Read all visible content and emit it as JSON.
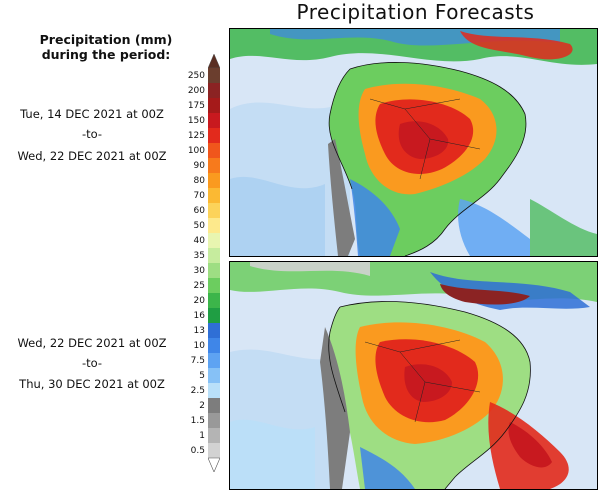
{
  "title": "Precipitation Forecasts",
  "legend": {
    "heading_line1": "Precipitation (mm)",
    "heading_line2": "during the period:",
    "levels": [
      {
        "label": "250",
        "color": "#6b3e2e"
      },
      {
        "label": "200",
        "color": "#8b2323"
      },
      {
        "label": "175",
        "color": "#a51a1a"
      },
      {
        "label": "150",
        "color": "#c8191f"
      },
      {
        "label": "125",
        "color": "#e22a1c"
      },
      {
        "label": "100",
        "color": "#f0561c"
      },
      {
        "label": "90",
        "color": "#f77a1c"
      },
      {
        "label": "80",
        "color": "#fa9a1f"
      },
      {
        "label": "70",
        "color": "#fbb933"
      },
      {
        "label": "60",
        "color": "#fcd35a"
      },
      {
        "label": "50",
        "color": "#fde98c"
      },
      {
        "label": "40",
        "color": "#e8f5b0"
      },
      {
        "label": "35",
        "color": "#c6ec9e"
      },
      {
        "label": "30",
        "color": "#9ede83"
      },
      {
        "label": "25",
        "color": "#6ccd5f"
      },
      {
        "label": "20",
        "color": "#3cb54a"
      },
      {
        "label": "16",
        "color": "#1f9e43"
      },
      {
        "label": "13",
        "color": "#2f6fd6"
      },
      {
        "label": "10",
        "color": "#3f86e8"
      },
      {
        "label": "7.5",
        "color": "#5ea3f2"
      },
      {
        "label": "5",
        "color": "#86c1f6"
      },
      {
        "label": "2.5",
        "color": "#b9e0f9"
      },
      {
        "label": "2",
        "color": "#7d7d7d"
      },
      {
        "label": "1.5",
        "color": "#999999"
      },
      {
        "label": "1",
        "color": "#b4b4b4"
      },
      {
        "label": "0.5",
        "color": "#d2d2d2"
      }
    ],
    "bottom_triangle_color": "#ffffff",
    "top_triangle_color": "#5a2e22"
  },
  "periods": [
    {
      "start": "Tue, 14 DEC 2021 at 00Z",
      "sep": "-to-",
      "end": "Wed, 22 DEC 2021 at 00Z"
    },
    {
      "start": "Wed, 22 DEC 2021 at 00Z",
      "sep": "-to-",
      "end": "Thu, 30 DEC 2021 at 00Z"
    }
  ]
}
